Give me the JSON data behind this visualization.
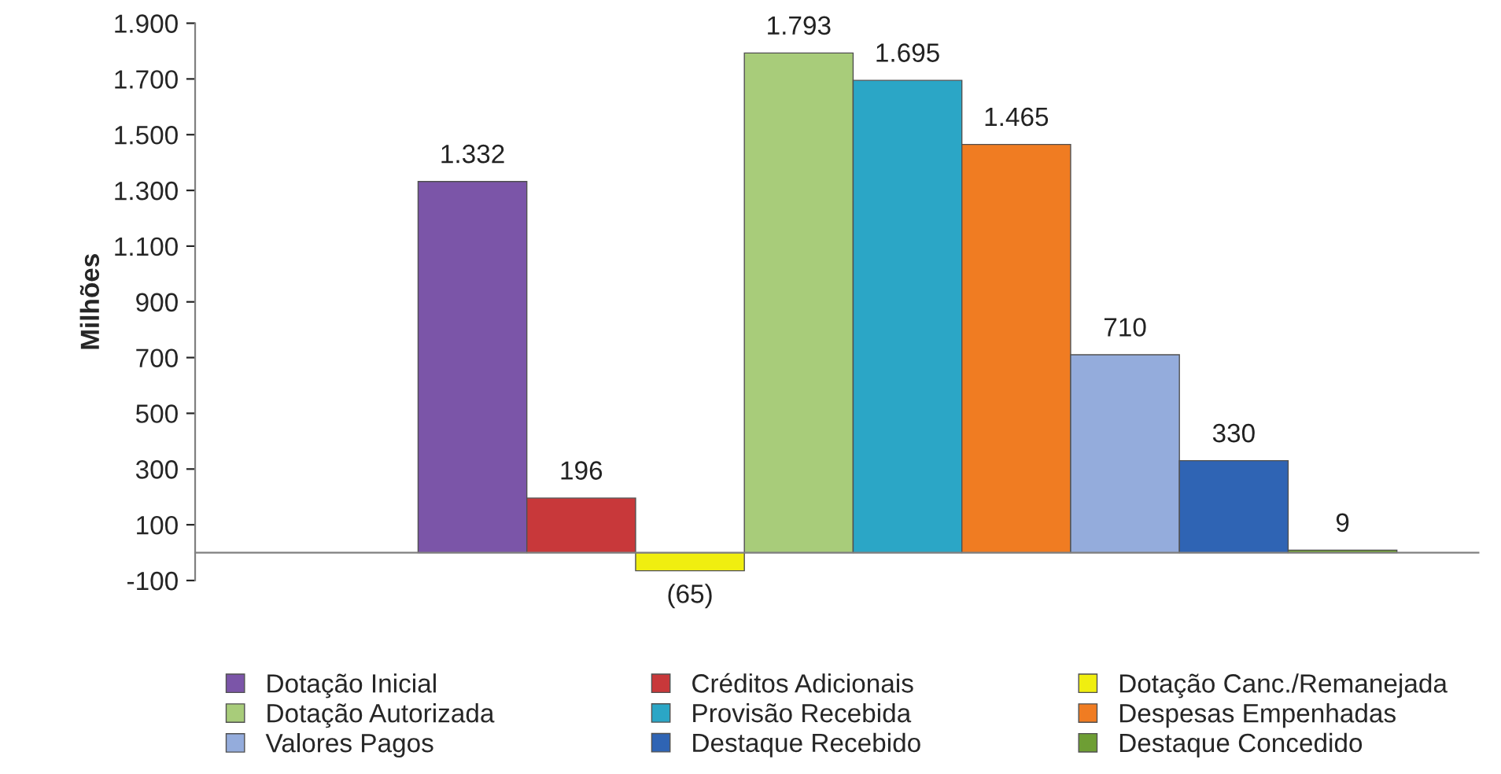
{
  "chart_data": {
    "type": "bar",
    "ylabel": "Milhões",
    "categories": [
      null
    ],
    "series": [
      {
        "name": "Dotação Inicial",
        "color": "#7b55a8",
        "values": [
          1332
        ],
        "value_labels": [
          "1.332"
        ]
      },
      {
        "name": "Créditos Adicionais",
        "color": "#c8383a",
        "values": [
          196
        ],
        "value_labels": [
          "196"
        ]
      },
      {
        "name": "Dotação Canc./Remanejada",
        "color": "#f0ee10",
        "values": [
          -65
        ],
        "value_labels": [
          "(65)"
        ]
      },
      {
        "name": "Dotação Autorizada",
        "color": "#a8cc7a",
        "values": [
          1793
        ],
        "value_labels": [
          "1.793"
        ]
      },
      {
        "name": "Provisão Recebida",
        "color": "#2ba6c6",
        "values": [
          1695
        ],
        "value_labels": [
          "1.695"
        ]
      },
      {
        "name": "Despesas Empenhadas",
        "color": "#f07c22",
        "values": [
          1465
        ],
        "value_labels": [
          "1.465"
        ]
      },
      {
        "name": "Valores Pagos",
        "color": "#94acdc",
        "values": [
          710
        ],
        "value_labels": [
          "710"
        ]
      },
      {
        "name": "Destaque Recebido",
        "color": "#2f64b4",
        "values": [
          330
        ],
        "value_labels": [
          "330"
        ]
      },
      {
        "name": "Destaque Concedido",
        "color": "#6e9e34",
        "values": [
          9
        ],
        "value_labels": [
          "9"
        ]
      }
    ],
    "ylim": [
      -100,
      1900
    ],
    "yticks": [
      -100,
      100,
      300,
      500,
      700,
      900,
      {
        "value": 1100,
        "label": "1.100"
      },
      {
        "value": 1300,
        "label": "1.300"
      },
      {
        "value": 1500,
        "label": "1.500"
      },
      {
        "value": 1700,
        "label": "1.700"
      },
      {
        "value": 1900,
        "label": "1.900"
      }
    ],
    "grid": false,
    "legend": "bottom"
  }
}
